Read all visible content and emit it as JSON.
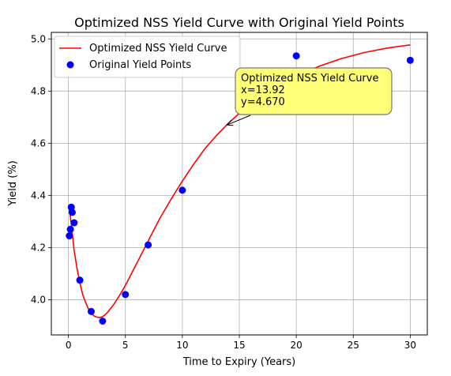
{
  "chart_data": {
    "type": "line",
    "title": "Optimized NSS Yield Curve with Original Yield Points",
    "xlabel": "Time to Expiry (Years)",
    "ylabel": "Yield (%)",
    "xlim": [
      -1.5,
      31.5
    ],
    "ylim": [
      3.865,
      5.025
    ],
    "xticks": [
      0,
      5,
      10,
      15,
      20,
      25,
      30
    ],
    "yticks": [
      4.0,
      4.2,
      4.4,
      4.6,
      4.8,
      5.0
    ],
    "xtick_labels": [
      "0",
      "5",
      "10",
      "15",
      "20",
      "25",
      "30"
    ],
    "ytick_labels": [
      "4.0",
      "4.2",
      "4.4",
      "4.6",
      "4.8",
      "5.0"
    ],
    "grid": true,
    "legend": {
      "placement": "top-left",
      "entries": [
        "Optimized NSS Yield Curve",
        "Original Yield Points"
      ]
    },
    "series": [
      {
        "name": "Optimized NSS Yield Curve",
        "kind": "line",
        "color": "#ff0000",
        "x": [
          0.08,
          0.15,
          0.25,
          0.35,
          0.5,
          0.75,
          1.0,
          1.25,
          1.5,
          1.75,
          2.0,
          2.25,
          2.5,
          2.75,
          3.0,
          3.25,
          3.5,
          4.0,
          4.5,
          5.0,
          6.0,
          7.0,
          8.0,
          9.0,
          10.0,
          11.0,
          12.0,
          13.0,
          14.0,
          15.0,
          16.0,
          17.0,
          18.0,
          19.0,
          20.0,
          22.0,
          24.0,
          26.0,
          28.0,
          30.0
        ],
        "y": [
          4.345,
          4.325,
          4.29,
          4.25,
          4.19,
          4.12,
          4.065,
          4.02,
          3.99,
          3.965,
          3.948,
          3.938,
          3.933,
          3.932,
          3.935,
          3.943,
          3.955,
          3.983,
          4.017,
          4.055,
          4.14,
          4.225,
          4.31,
          4.385,
          4.455,
          4.52,
          4.58,
          4.63,
          4.675,
          4.715,
          4.75,
          4.78,
          4.81,
          4.835,
          4.858,
          4.895,
          4.925,
          4.948,
          4.965,
          4.977
        ]
      },
      {
        "name": "Original Yield Points",
        "kind": "scatter",
        "color": "#0000ff",
        "x": [
          0.08,
          0.17,
          0.25,
          0.33,
          0.5,
          1.0,
          2.0,
          3.0,
          5.0,
          7.0,
          10.0,
          20.0,
          30.0
        ],
        "y": [
          4.245,
          4.27,
          4.355,
          4.335,
          4.295,
          4.075,
          3.955,
          3.918,
          4.02,
          4.21,
          4.42,
          4.935,
          4.918
        ]
      }
    ],
    "annotation": {
      "lines": [
        "Optimized NSS Yield Curve",
        "x=13.92",
        "y=4.670"
      ],
      "target": [
        13.92,
        4.67
      ]
    }
  },
  "colors": {
    "box_fill": "#ffff77",
    "box_stroke": "#777777",
    "grid": "#b0b0b0"
  }
}
